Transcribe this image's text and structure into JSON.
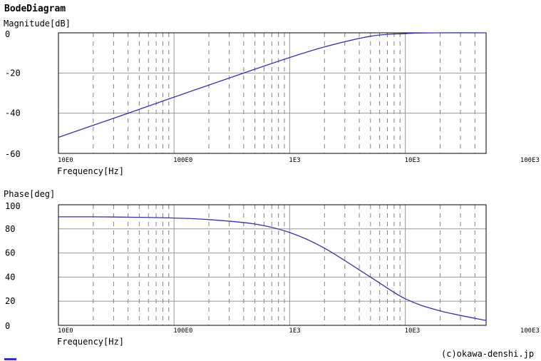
{
  "title": "BodeDiagram",
  "credit": "(c)okawa-denshi.jp",
  "colors": {
    "curve": "#3333aa",
    "major_grid": "#999999",
    "minor_grid": "#808080",
    "frame": "#000000"
  },
  "chart_data": [
    {
      "type": "line",
      "ylabel": "Magnitude[dB]",
      "xlabel": "Frequency[Hz]",
      "x_scale": "log",
      "xlim": [
        10,
        50000
      ],
      "ylim": [
        -60,
        0
      ],
      "y_ticks": [
        0,
        -20,
        -40,
        -60
      ],
      "x_tick_labels": [
        "10E0",
        "100E0",
        "1E3",
        "10E3",
        "100E3"
      ],
      "x_tick_values": [
        10,
        100,
        1000,
        10000,
        100000
      ],
      "grid": true,
      "series": [
        {
          "x": [
            10,
            20,
            50,
            100,
            200,
            500,
            1000,
            2000,
            5000,
            10000,
            20000,
            50000
          ],
          "values": [
            -52,
            -46,
            -38.1,
            -32,
            -26,
            -18.1,
            -12.3,
            -7,
            -1.7,
            -0.4,
            0,
            0
          ]
        }
      ]
    },
    {
      "type": "line",
      "ylabel": "Phase[deg]",
      "xlabel": "Frequency[Hz]",
      "x_scale": "log",
      "xlim": [
        10,
        50000
      ],
      "ylim": [
        0,
        100
      ],
      "y_ticks": [
        100,
        80,
        60,
        40,
        20,
        0
      ],
      "x_tick_labels": [
        "10E0",
        "100E0",
        "1E3",
        "10E3",
        "100E3"
      ],
      "x_tick_values": [
        10,
        100,
        1000,
        10000,
        100000
      ],
      "grid": true,
      "series": [
        {
          "x": [
            10,
            20,
            50,
            100,
            200,
            500,
            1000,
            2000,
            5000,
            10000,
            20000,
            50000
          ],
          "values": [
            90,
            90,
            89.6,
            89,
            87.7,
            84,
            77,
            64,
            40,
            22,
            12,
            4
          ]
        }
      ]
    }
  ]
}
